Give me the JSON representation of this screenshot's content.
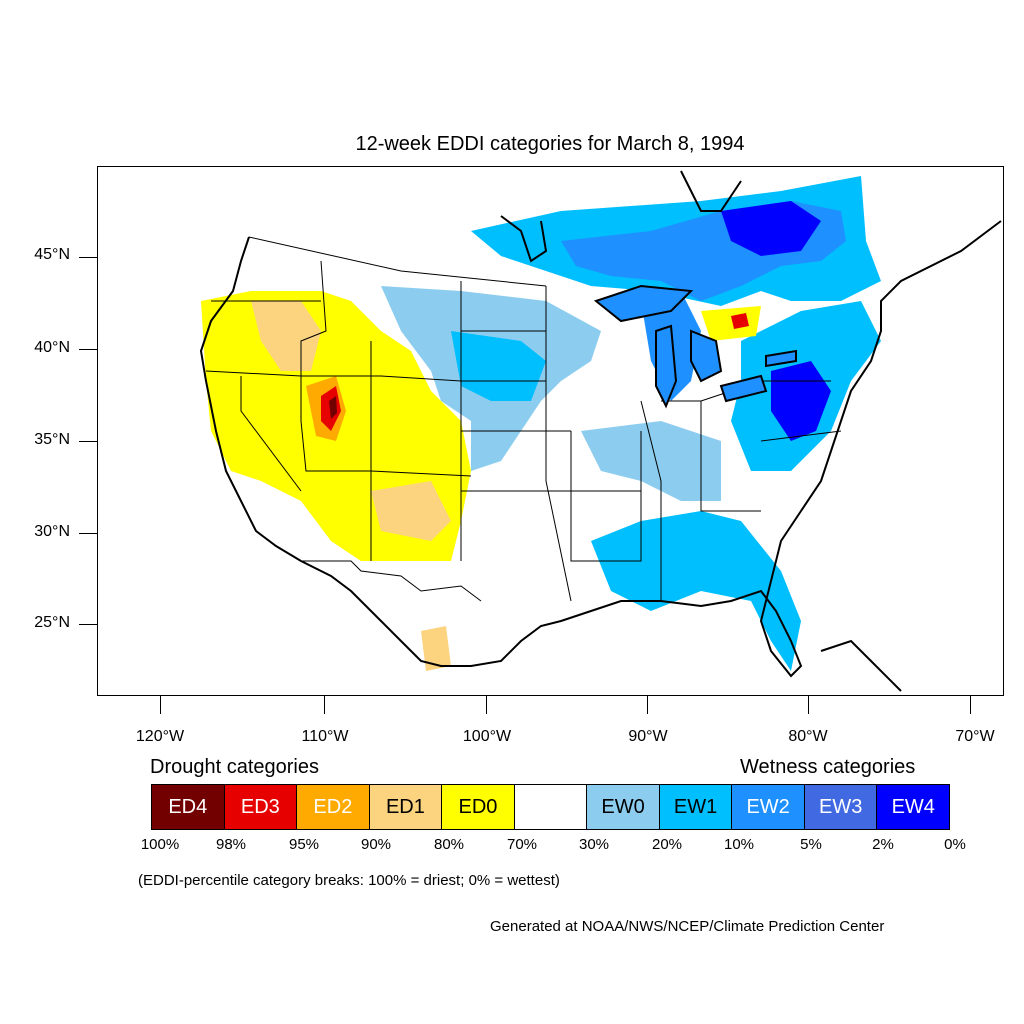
{
  "map": {
    "title": "12-week EDDI categories for March 8, 1994",
    "lat_labels": [
      "45°N",
      "40°N",
      "35°N",
      "30°N",
      "25°N"
    ],
    "lon_labels": [
      "120°W",
      "110°W",
      "100°W",
      "90°W",
      "80°W",
      "70°W"
    ],
    "region_icon": "contiguous-us-outline"
  },
  "legend": {
    "drought_title": "Drought categories",
    "wetness_title": "Wetness categories",
    "categories": [
      {
        "label": "ED4",
        "color": "#730000",
        "text_color": "#ffffff"
      },
      {
        "label": "ED3",
        "color": "#e60000",
        "text_color": "#ffffff"
      },
      {
        "label": "ED2",
        "color": "#ffaa00",
        "text_color": "#ffffff"
      },
      {
        "label": "ED1",
        "color": "#fcd37f",
        "text_color": "#000000"
      },
      {
        "label": "ED0",
        "color": "#ffff00",
        "text_color": "#000000"
      },
      {
        "label": "",
        "color": "#ffffff",
        "text_color": "#000000"
      },
      {
        "label": "EW0",
        "color": "#8ccdef",
        "text_color": "#000000"
      },
      {
        "label": "EW1",
        "color": "#00bfff",
        "text_color": "#000000"
      },
      {
        "label": "EW2",
        "color": "#1e90ff",
        "text_color": "#ffffff"
      },
      {
        "label": "EW3",
        "color": "#4169e1",
        "text_color": "#ffffff"
      },
      {
        "label": "EW4",
        "color": "#0000ff",
        "text_color": "#ffffff"
      }
    ],
    "percentiles": [
      "100%",
      "98%",
      "95%",
      "90%",
      "80%",
      "70%",
      "30%",
      "20%",
      "10%",
      "5%",
      "2%",
      "0%"
    ],
    "note": "(EDDI-percentile category breaks: 100% = driest; 0% = wettest)"
  },
  "footer": {
    "credit": "Generated at NOAA/NWS/NCEP/Climate Prediction Center"
  }
}
